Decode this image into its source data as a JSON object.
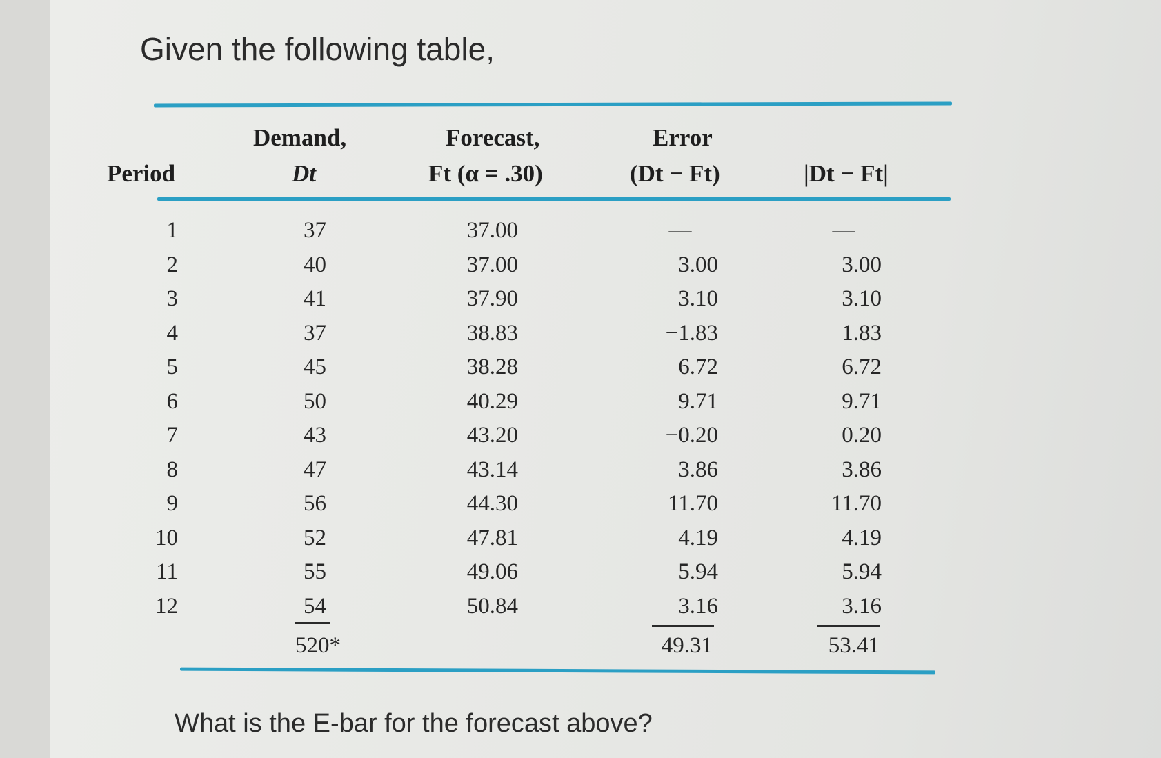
{
  "question": "Given the following table,",
  "prompt": "What is the E-bar for the forecast above?",
  "table": {
    "headers": {
      "period": "Period",
      "demand_l1": "Demand,",
      "demand_l2": "Dt",
      "forecast_l1": "Forecast,",
      "forecast_l2": "Ft (α = .30)",
      "error_l1": "Error",
      "error_l2": "(Dt − Ft)",
      "abs_error": "|Dt − Ft|"
    },
    "rows": [
      {
        "period": "1",
        "demand": "37",
        "forecast": "37.00",
        "error": "—",
        "abs_error": "—"
      },
      {
        "period": "2",
        "demand": "40",
        "forecast": "37.00",
        "error": "3.00",
        "abs_error": "3.00"
      },
      {
        "period": "3",
        "demand": "41",
        "forecast": "37.90",
        "error": "3.10",
        "abs_error": "3.10"
      },
      {
        "period": "4",
        "demand": "37",
        "forecast": "38.83",
        "error": "−1.83",
        "abs_error": "1.83"
      },
      {
        "period": "5",
        "demand": "45",
        "forecast": "38.28",
        "error": "6.72",
        "abs_error": "6.72"
      },
      {
        "period": "6",
        "demand": "50",
        "forecast": "40.29",
        "error": "9.71",
        "abs_error": "9.71"
      },
      {
        "period": "7",
        "demand": "43",
        "forecast": "43.20",
        "error": "−0.20",
        "abs_error": "0.20"
      },
      {
        "period": "8",
        "demand": "47",
        "forecast": "43.14",
        "error": "3.86",
        "abs_error": "3.86"
      },
      {
        "period": "9",
        "demand": "56",
        "forecast": "44.30",
        "error": "11.70",
        "abs_error": "11.70"
      },
      {
        "period": "10",
        "demand": "52",
        "forecast": "47.81",
        "error": "4.19",
        "abs_error": "4.19"
      },
      {
        "period": "11",
        "demand": "55",
        "forecast": "49.06",
        "error": "5.94",
        "abs_error": "5.94"
      },
      {
        "period": "12",
        "demand": "54",
        "forecast": "50.84",
        "error": "3.16",
        "abs_error": "3.16"
      }
    ],
    "totals": {
      "demand": "520*",
      "error": "49.31",
      "abs_error": "53.41"
    }
  },
  "colors": {
    "rule": "#2b9fc4",
    "paper": "#e8e9e6"
  }
}
